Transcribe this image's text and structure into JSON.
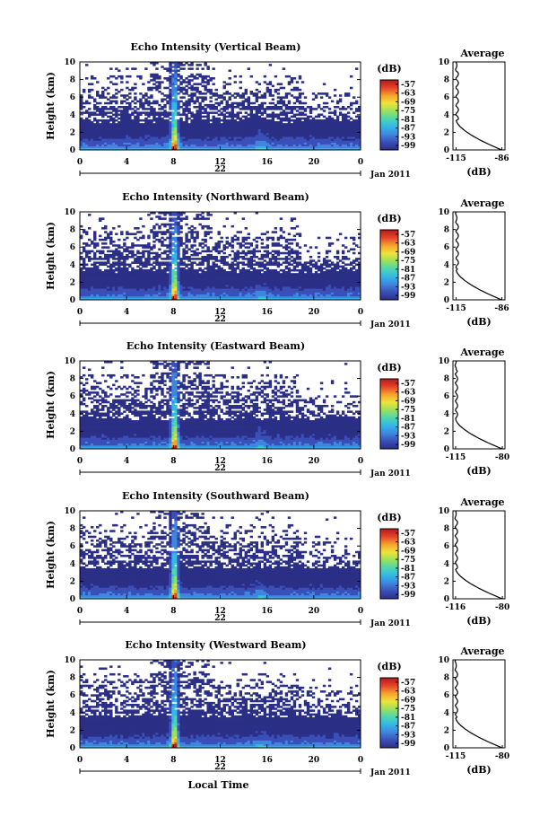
{
  "chart_data": [
    {
      "type": "heatmap",
      "title": "Echo Intensity (Vertical Beam)",
      "ylabel": "Height (km)",
      "xticks": [
        "0",
        "4",
        "8",
        "12",
        "16",
        "20",
        "0"
      ],
      "yticks": [
        "0",
        "2",
        "4",
        "6",
        "8",
        "10"
      ],
      "xlim": [
        0,
        24
      ],
      "ylim": [
        0,
        10
      ],
      "date_label": "22",
      "month_label": "Jan 2011",
      "colorbar": {
        "unit": "(dB)",
        "ticks": [
          "-57",
          "-63",
          "-69",
          "-75",
          "-81",
          "-87",
          "-93",
          "-99"
        ],
        "range": [
          -102,
          -54
        ]
      },
      "profile": {
        "title": "Average",
        "xlabel": "(dB)",
        "xticks": [
          "-115",
          "-86"
        ],
        "xlim": [
          -117,
          -84
        ],
        "yticks": [
          "0",
          "2",
          "4",
          "6",
          "8",
          "10"
        ]
      }
    },
    {
      "type": "heatmap",
      "title": "Echo Intensity (Northward Beam)",
      "ylabel": "Height (km)",
      "xticks": [
        "0",
        "4",
        "8",
        "12",
        "16",
        "20",
        "0"
      ],
      "yticks": [
        "0",
        "2",
        "4",
        "6",
        "8",
        "10"
      ],
      "xlim": [
        0,
        24
      ],
      "ylim": [
        0,
        10
      ],
      "date_label": "22",
      "month_label": "Jan 2011",
      "colorbar": {
        "unit": "(dB)",
        "ticks": [
          "-57",
          "-63",
          "-69",
          "-75",
          "-81",
          "-87",
          "-93",
          "-99"
        ],
        "range": [
          -102,
          -54
        ]
      },
      "profile": {
        "title": "Average",
        "xlabel": "(dB)",
        "xticks": [
          "-115",
          "-86"
        ],
        "xlim": [
          -117,
          -84
        ],
        "yticks": [
          "0",
          "2",
          "4",
          "6",
          "8",
          "10"
        ]
      }
    },
    {
      "type": "heatmap",
      "title": "Echo Intensity (Eastward Beam)",
      "ylabel": "Height (km)",
      "xticks": [
        "0",
        "4",
        "8",
        "12",
        "16",
        "20",
        "0"
      ],
      "yticks": [
        "0",
        "2",
        "4",
        "6",
        "8",
        "10"
      ],
      "xlim": [
        0,
        24
      ],
      "ylim": [
        0,
        10
      ],
      "date_label": "22",
      "month_label": "Jan 2011",
      "colorbar": {
        "unit": "(dB)",
        "ticks": [
          "-57",
          "-63",
          "-69",
          "-75",
          "-81",
          "-87",
          "-93",
          "-99"
        ],
        "range": [
          -102,
          -54
        ]
      },
      "profile": {
        "title": "Average",
        "xlabel": "(dB)",
        "xticks": [
          "-115",
          "-80"
        ],
        "xlim": [
          -117,
          -78
        ],
        "yticks": [
          "0",
          "2",
          "4",
          "6",
          "8",
          "10"
        ]
      }
    },
    {
      "type": "heatmap",
      "title": "Echo Intensity (Southward Beam)",
      "ylabel": "Height (km)",
      "xticks": [
        "0",
        "4",
        "8",
        "12",
        "16",
        "20",
        "0"
      ],
      "yticks": [
        "0",
        "2",
        "4",
        "6",
        "8",
        "10"
      ],
      "xlim": [
        0,
        24
      ],
      "ylim": [
        0,
        10
      ],
      "date_label": "22",
      "month_label": "Jan 2011",
      "colorbar": {
        "unit": "(dB)",
        "ticks": [
          "-57",
          "-63",
          "-69",
          "-75",
          "-81",
          "-87",
          "-93",
          "-99"
        ],
        "range": [
          -102,
          -54
        ]
      },
      "profile": {
        "title": "Average",
        "xlabel": "(dB)",
        "xticks": [
          "-116",
          "-80"
        ],
        "xlim": [
          -118,
          -78
        ],
        "yticks": [
          "0",
          "2",
          "4",
          "6",
          "8",
          "10"
        ]
      }
    },
    {
      "type": "heatmap",
      "title": "Echo Intensity (Westward Beam)",
      "ylabel": "Height (km)",
      "xticks": [
        "0",
        "4",
        "8",
        "12",
        "16",
        "20",
        "0"
      ],
      "yticks": [
        "0",
        "2",
        "4",
        "6",
        "8",
        "10"
      ],
      "xlim": [
        0,
        24
      ],
      "ylim": [
        0,
        10
      ],
      "date_label": "22",
      "month_label": "Jan 2011",
      "xlabel": "Local Time",
      "colorbar": {
        "unit": "(dB)",
        "ticks": [
          "-57",
          "-63",
          "-69",
          "-75",
          "-81",
          "-87",
          "-93",
          "-99"
        ],
        "range": [
          -102,
          -54
        ]
      },
      "profile": {
        "title": "Average",
        "xlabel": "(dB)",
        "xticks": [
          "-115",
          "-80"
        ],
        "xlim": [
          -117,
          -78
        ],
        "yticks": [
          "0",
          "2",
          "4",
          "6",
          "8",
          "10"
        ]
      }
    }
  ],
  "colors": {
    "no_data": "#ffffff",
    "background_echo": "#2f3a8f",
    "scale": [
      "#2b2f86",
      "#3a4fb8",
      "#3f86e0",
      "#32b8e6",
      "#4fd6b0",
      "#9be15a",
      "#f1e23a",
      "#f6a12c",
      "#e4422a",
      "#b31a1a"
    ]
  }
}
